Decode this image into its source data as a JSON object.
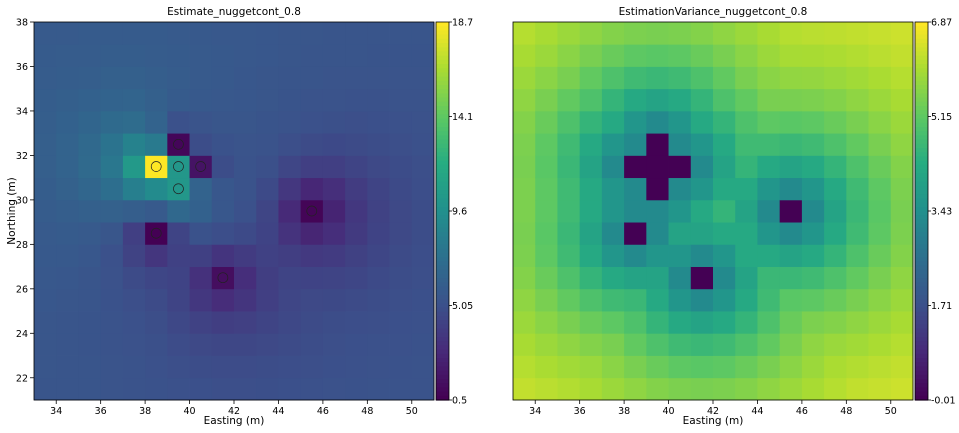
{
  "chart_data": [
    {
      "type": "heatmap",
      "title": "Estimate_nuggetcont_0.8",
      "xlabel": "Easting (m)",
      "ylabel": "Northing (m)",
      "xlim": [
        33,
        51
      ],
      "ylim": [
        21,
        38
      ],
      "xticks": [
        34,
        36,
        38,
        40,
        42,
        44,
        46,
        48,
        50
      ],
      "yticks": [
        22,
        24,
        26,
        28,
        30,
        32,
        34,
        36,
        38
      ],
      "grid": false,
      "colormap": "viridis",
      "colorbar": {
        "min": 0.5,
        "max": 18.7,
        "ticks": [
          "18.7",
          "14.1",
          "9.6",
          "5.05",
          "0.5"
        ]
      },
      "cell_size_m": 1,
      "samples": [
        {
          "x": 38.5,
          "y": 31.5,
          "value": 18.7
        },
        {
          "x": 39.5,
          "y": 32.5,
          "value": 0.8
        },
        {
          "x": 39.5,
          "y": 31.5,
          "value": 10.2
        },
        {
          "x": 40.5,
          "y": 31.5,
          "value": 1.5
        },
        {
          "x": 39.5,
          "y": 30.5,
          "value": 10.2
        },
        {
          "x": 38.5,
          "y": 28.5,
          "value": 0.5
        },
        {
          "x": 45.5,
          "y": 29.5,
          "value": 0.7
        },
        {
          "x": 41.5,
          "y": 26.5,
          "value": 1.2
        }
      ]
    },
    {
      "type": "heatmap",
      "title": "EstimationVariance_nuggetcont_0.8",
      "xlabel": "Easting (m)",
      "ylabel": "",
      "xlim": [
        33,
        51
      ],
      "ylim": [
        21,
        38
      ],
      "xticks": [
        34,
        36,
        38,
        40,
        42,
        44,
        46,
        48,
        50
      ],
      "grid": false,
      "colormap": "viridis",
      "colorbar": {
        "min": -0.01,
        "max": 6.87,
        "ticks": [
          "6.87",
          "5.15",
          "3.43",
          "1.71",
          "-0.01"
        ]
      },
      "cell_size_m": 1,
      "zero_variance_cells": [
        {
          "x": 39.5,
          "y": 32.5
        },
        {
          "x": 38.5,
          "y": 31.5
        },
        {
          "x": 39.5,
          "y": 31.5
        },
        {
          "x": 40.5,
          "y": 31.5
        },
        {
          "x": 39.5,
          "y": 30.5
        },
        {
          "x": 38.5,
          "y": 28.5
        },
        {
          "x": 45.5,
          "y": 29.5
        },
        {
          "x": 41.5,
          "y": 26.5
        }
      ]
    }
  ]
}
